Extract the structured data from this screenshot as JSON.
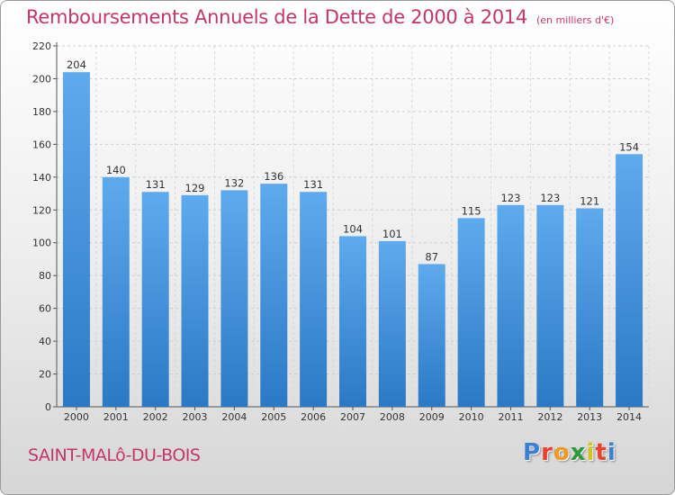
{
  "header": {
    "title": "Remboursements Annuels de la Dette de 2000 à 2014",
    "unit": "(en milliers d'€)"
  },
  "footer": {
    "commune": "SAINT-MALô-DU-BOIS",
    "logo_letters": [
      "P",
      "r",
      "o",
      "x",
      "i",
      "t",
      "i"
    ]
  },
  "colors": {
    "accent": "#c2366a",
    "bar_light": "#5aa8ec",
    "bar_dark": "#2a78c4"
  },
  "chart_data": {
    "type": "bar",
    "title": "Remboursements Annuels de la Dette de 2000 à 2014",
    "xlabel": "",
    "ylabel": "",
    "categories": [
      "2000",
      "2001",
      "2002",
      "2003",
      "2004",
      "2005",
      "2006",
      "2007",
      "2008",
      "2009",
      "2010",
      "2011",
      "2012",
      "2013",
      "2014"
    ],
    "values": [
      204,
      140,
      131,
      129,
      132,
      136,
      131,
      104,
      101,
      87,
      115,
      123,
      123,
      121,
      154
    ],
    "ylim": [
      0,
      220
    ],
    "yticks": [
      0,
      20,
      40,
      60,
      80,
      100,
      120,
      140,
      160,
      180,
      200,
      220
    ],
    "grid": true,
    "legend": "none"
  }
}
